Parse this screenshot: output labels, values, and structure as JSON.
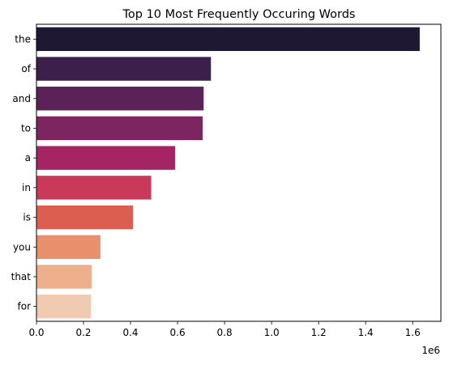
{
  "chart_data": {
    "type": "bar",
    "orientation": "horizontal",
    "title": "Top 10 Most Frequently Occuring Words",
    "xlabel": "",
    "ylabel": "",
    "x_offset_text": "1e6",
    "categories": [
      "the",
      "of",
      "and",
      "to",
      "a",
      "in",
      "is",
      "you",
      "that",
      "for"
    ],
    "values": [
      1630000,
      742000,
      711000,
      707000,
      590000,
      488000,
      411000,
      272000,
      235000,
      232000
    ],
    "xlim": [
      0,
      1720000
    ],
    "x_ticks": [
      0,
      200000,
      400000,
      600000,
      800000,
      1000000,
      1200000,
      1400000,
      1600000
    ],
    "x_tick_labels": [
      "0.0",
      "0.2",
      "0.4",
      "0.6",
      "0.8",
      "1.0",
      "1.2",
      "1.4",
      "1.6"
    ],
    "grid": false,
    "legend": "none",
    "colors": [
      "#1f1833",
      "#3d1f4b",
      "#5a2256",
      "#7d2560",
      "#a52463",
      "#c93a5a",
      "#dc5e50",
      "#ea8f6c",
      "#eeb08c",
      "#f1cbb1"
    ]
  }
}
